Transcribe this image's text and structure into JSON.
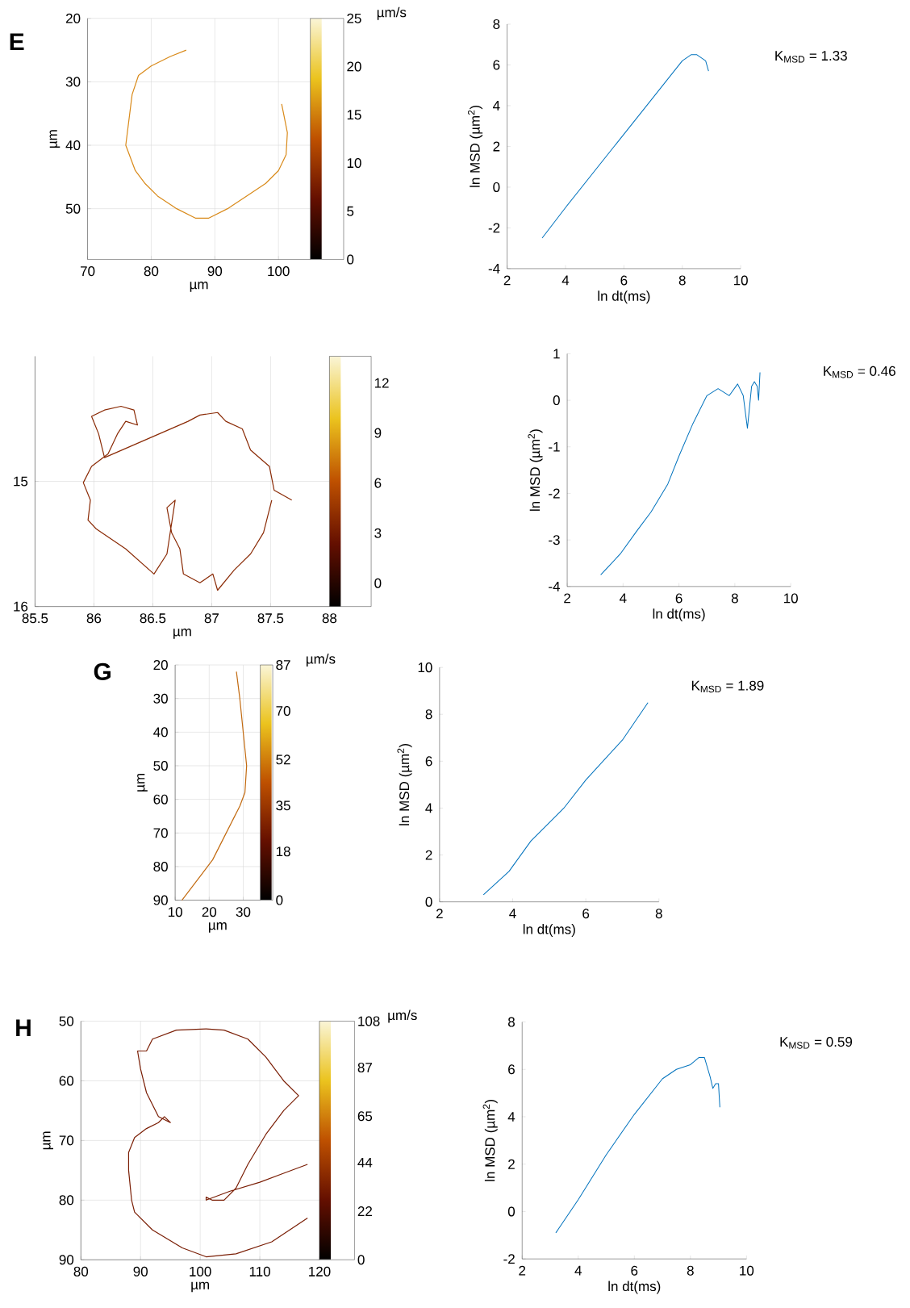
{
  "chart_data": [
    {
      "type": "line",
      "title": "E",
      "xlabel": "µm",
      "ylabel": "µm",
      "color": "#d98a1a",
      "grid": true,
      "x": [
        85.5,
        83,
        80,
        78,
        77,
        76.5,
        76,
        77.5,
        79,
        81,
        84,
        87,
        89,
        92,
        95,
        98,
        100,
        101.2,
        101.4,
        100.8,
        100.5
      ],
      "values": [
        25,
        26,
        27.5,
        29,
        32,
        36,
        40,
        44,
        46,
        48,
        50,
        51.5,
        51.5,
        50,
        48,
        46,
        44,
        41.5,
        38,
        35,
        33.5
      ],
      "xlim": [
        70,
        105
      ],
      "ylim": [
        58,
        20
      ],
      "xticks": [
        70,
        80,
        90,
        100
      ],
      "yticks": [
        20,
        30,
        40,
        50
      ],
      "clim": [
        0,
        25
      ],
      "cticks": [
        0,
        5,
        10,
        15,
        20,
        25
      ],
      "clabel": "µm/s"
    },
    {
      "type": "line",
      "xlabel": "ln dt(ms)",
      "ylabel": "ln MSD (µm$^{2}$)",
      "color": "#0072bd",
      "x": [
        3.2,
        4,
        5,
        6,
        7,
        7.5,
        8,
        8.3,
        8.5,
        8.7,
        8.8,
        8.9
      ],
      "values": [
        -2.5,
        -1,
        0.8,
        2.6,
        4.4,
        5.3,
        6.2,
        6.5,
        6.5,
        6.3,
        6.2,
        5.7
      ],
      "xlim": [
        2,
        10
      ],
      "ylim": [
        -4,
        8
      ],
      "xticks": [
        2,
        4,
        6,
        8,
        10
      ],
      "yticks": [
        -4,
        -2,
        0,
        2,
        4,
        6,
        8
      ],
      "annotations": [
        "K$_{MSD}$ = 1.33"
      ]
    },
    {
      "type": "line",
      "xlabel": "µm",
      "color": "#8a2a05",
      "grid": true,
      "x": [
        87.68,
        87.53,
        87.49,
        87.33,
        87.26,
        87.12,
        87.05,
        86.9,
        86.8,
        86.09,
        86.04,
        85.98,
        86.09,
        86.23,
        86.34,
        86.37,
        86.27,
        86.2,
        86.12,
        85.98,
        85.91,
        85.97,
        85.95,
        86.02,
        86.27,
        86.51,
        86.62,
        86.69,
        86.62,
        86.66,
        86.73,
        86.76,
        86.9,
        87.01,
        87.05,
        87.19,
        87.33,
        87.44,
        87.51
      ],
      "values": [
        15.15,
        15.07,
        14.88,
        14.75,
        14.58,
        14.52,
        14.45,
        14.47,
        14.52,
        14.81,
        14.62,
        14.48,
        14.43,
        14.4,
        14.43,
        14.55,
        14.52,
        14.62,
        14.78,
        14.88,
        15.01,
        15.15,
        15.31,
        15.38,
        15.54,
        15.74,
        15.58,
        15.15,
        15.21,
        15.41,
        15.54,
        15.74,
        15.81,
        15.74,
        15.87,
        15.71,
        15.58,
        15.41,
        15.15
      ],
      "xlim": [
        85.5,
        88
      ],
      "ylim": [
        16,
        14
      ],
      "xticks": [
        85.5,
        86,
        86.5,
        87,
        87.5,
        88
      ],
      "yticks": [
        15,
        16
      ],
      "clim": [
        -1.4,
        13.6
      ],
      "cticks": [
        0,
        3,
        6,
        9,
        12
      ]
    },
    {
      "type": "line",
      "xlabel": "ln dt(ms)",
      "ylabel": "ln MSD (µm$^{2}$)",
      "color": "#0072bd",
      "x": [
        3.2,
        3.9,
        4.5,
        5,
        5.6,
        6,
        6.5,
        7,
        7.4,
        7.8,
        8.1,
        8.3,
        8.45,
        8.6,
        8.7,
        8.8,
        8.85,
        8.9
      ],
      "values": [
        -3.75,
        -3.3,
        -2.8,
        -2.4,
        -1.8,
        -1.2,
        -0.5,
        0.1,
        0.25,
        0.1,
        0.35,
        0.1,
        -0.6,
        0.3,
        0.4,
        0.3,
        0,
        0.6
      ],
      "xlim": [
        2,
        10
      ],
      "ylim": [
        -4,
        1
      ],
      "xticks": [
        2,
        4,
        6,
        8,
        10
      ],
      "yticks": [
        -4,
        -3,
        -2,
        -1,
        0,
        1
      ],
      "annotations": [
        "K$_{MSD}$ = 0.46"
      ]
    },
    {
      "type": "line",
      "title": "G",
      "xlabel": "µm",
      "ylabel": "µm",
      "color": "#c26a10",
      "grid": true,
      "x": [
        28,
        28.5,
        29,
        30,
        31,
        30.5,
        29,
        27,
        24,
        21,
        18,
        15,
        12
      ],
      "values": [
        22,
        26,
        30,
        40,
        50,
        58,
        62,
        66,
        72,
        78,
        82,
        86,
        90
      ],
      "xlim": [
        10,
        35
      ],
      "ylim": [
        90,
        20
      ],
      "xticks": [
        10,
        20,
        30
      ],
      "yticks": [
        20,
        30,
        40,
        50,
        60,
        70,
        80,
        90
      ],
      "clim": [
        0,
        87
      ],
      "cticks": [
        0,
        18,
        35,
        52,
        70,
        87
      ],
      "clabel": "µm/s"
    },
    {
      "type": "line",
      "xlabel": "ln dt(ms)",
      "ylabel": "ln MSD (µm$^{2}$)",
      "color": "#0072bd",
      "x": [
        3.2,
        3.9,
        4.5,
        5.4,
        6,
        7,
        7.7
      ],
      "values": [
        0.3,
        1.3,
        2.6,
        4,
        5.2,
        6.9,
        8.5
      ],
      "xlim": [
        2,
        8
      ],
      "ylim": [
        0,
        10
      ],
      "xticks": [
        2,
        4,
        6,
        8
      ],
      "yticks": [
        0,
        2,
        4,
        6,
        8,
        10
      ],
      "annotations": [
        "K$_{MSD}$ = 1.89"
      ]
    },
    {
      "type": "line",
      "title": "H",
      "xlabel": "µm",
      "ylabel": "µm",
      "color": "#7a1e05",
      "grid": true,
      "x": [
        118,
        112,
        106,
        101,
        97,
        92,
        89,
        88.5,
        88,
        88,
        89,
        91,
        93,
        94,
        95,
        93,
        91,
        90,
        89.5,
        91,
        92,
        96,
        101,
        104,
        108,
        111,
        114,
        116.5,
        114,
        111,
        108,
        106,
        104,
        102,
        101,
        101,
        105,
        110,
        114,
        118
      ],
      "values": [
        83,
        87,
        89,
        89.5,
        88,
        85,
        82,
        80,
        75,
        72,
        69.5,
        68,
        67,
        66,
        67,
        66,
        62,
        58,
        55,
        55,
        53,
        51.5,
        51.3,
        51.5,
        53,
        56,
        60,
        62.5,
        65,
        69,
        74,
        78,
        80,
        80,
        79.5,
        80,
        78.5,
        77,
        75.5,
        74
      ],
      "xlim": [
        80,
        120
      ],
      "ylim": [
        90,
        50
      ],
      "xticks": [
        80,
        90,
        100,
        110,
        120
      ],
      "yticks": [
        50,
        60,
        70,
        80,
        90
      ],
      "clim": [
        0,
        108
      ],
      "cticks": [
        0,
        22,
        44,
        65,
        87,
        108
      ],
      "clabel": "µm/s"
    },
    {
      "type": "line",
      "xlabel": "ln dt(ms)",
      "ylabel": "ln MSD (µm$^{2}$)",
      "color": "#0072bd",
      "x": [
        3.2,
        4,
        5,
        6,
        7,
        7.5,
        8,
        8.3,
        8.5,
        8.7,
        8.8,
        8.9,
        9,
        9.05
      ],
      "values": [
        -0.9,
        0.5,
        2.4,
        4.1,
        5.6,
        6,
        6.2,
        6.5,
        6.5,
        5.7,
        5.2,
        5.4,
        5.4,
        4.4
      ],
      "xlim": [
        2,
        10
      ],
      "ylim": [
        -2,
        8
      ],
      "xticks": [
        2,
        4,
        6,
        8,
        10
      ],
      "yticks": [
        -2,
        0,
        2,
        4,
        6,
        8
      ],
      "annotations": [
        "K$_{MSD}$ = 0.59"
      ]
    }
  ]
}
